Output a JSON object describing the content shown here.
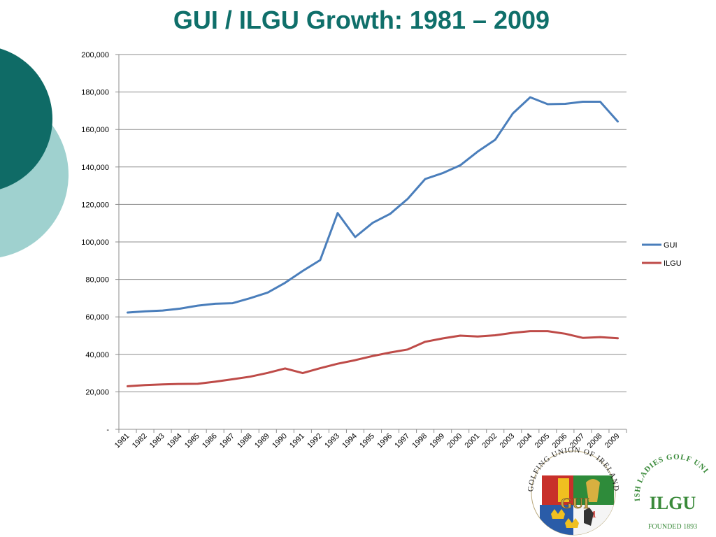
{
  "slide": {
    "title": "GUI / ILGU Growth: 1981 – 2009",
    "accent_dark": "#0f6b66",
    "accent_light": "#9fd1cf"
  },
  "chart_data": {
    "type": "line",
    "title": "",
    "xlabel": "",
    "ylabel": "",
    "categories": [
      "1981",
      "1982",
      "1983",
      "1984",
      "1985",
      "1986",
      "1987",
      "1988",
      "1989",
      "1990",
      "1991",
      "1992",
      "1993",
      "1994",
      "1995",
      "1996",
      "1997",
      "1998",
      "1999",
      "2000",
      "2001",
      "2002",
      "2003",
      "2004",
      "2005",
      "2006",
      "2007",
      "2008",
      "2009"
    ],
    "ylim": [
      0,
      200000
    ],
    "yticks": [
      {
        "value": 0,
        "label": "-"
      },
      {
        "value": 20000,
        "label": "20,000"
      },
      {
        "value": 40000,
        "label": "40,000"
      },
      {
        "value": 60000,
        "label": "60,000"
      },
      {
        "value": 80000,
        "label": "80,000"
      },
      {
        "value": 100000,
        "label": "100,000"
      },
      {
        "value": 120000,
        "label": "120,000"
      },
      {
        "value": 140000,
        "label": "140,000"
      },
      {
        "value": 160000,
        "label": "160,000"
      },
      {
        "value": 180000,
        "label": "180,000"
      },
      {
        "value": 200000,
        "label": "200,000"
      }
    ],
    "grid": true,
    "legend_position": "right",
    "series": [
      {
        "name": "GUI",
        "color": "#4a7ebb",
        "values": [
          62300,
          63000,
          63400,
          64400,
          66000,
          67000,
          67300,
          70000,
          73000,
          78200,
          84500,
          90300,
          115400,
          102600,
          110200,
          115000,
          123000,
          133600,
          136700,
          140900,
          148200,
          154500,
          168500,
          177200,
          173500,
          173700,
          174800,
          174800,
          164300
        ]
      },
      {
        "name": "ILGU",
        "color": "#be4b48",
        "values": [
          23000,
          23600,
          24000,
          24200,
          24300,
          25400,
          26700,
          28100,
          30100,
          32500,
          30000,
          32600,
          35000,
          36900,
          39100,
          41000,
          42600,
          46700,
          48500,
          50000,
          49500,
          50200,
          51500,
          52400,
          52400,
          51000,
          48800,
          49200,
          48600
        ]
      }
    ]
  },
  "logos": {
    "gui": {
      "ring_text": "GOLFING UNION OF IRELAND",
      "letters": "GUI",
      "mark": "1"
    },
    "ilgu": {
      "ring_text": "IRISH LADIES GOLF UNION",
      "monogram": "ILGU",
      "founded": "FOUNDED 1893",
      "color": "#3a8a3a"
    }
  }
}
